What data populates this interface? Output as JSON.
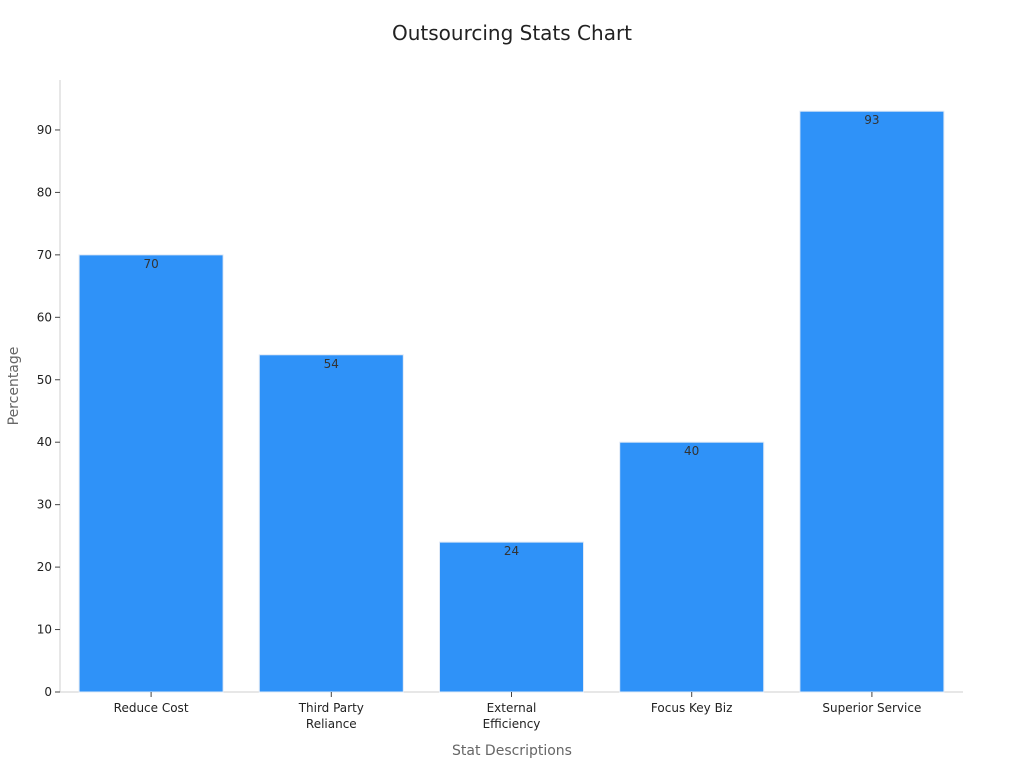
{
  "colors": {
    "bar": "#2f92f8",
    "bar_border": "#dfe9f6",
    "axis": "#cfcfcf",
    "tick_text": "#222222",
    "label_text": "#666666",
    "title_text": "#222222",
    "value_text": "#333333"
  },
  "chart_data": {
    "type": "bar",
    "title": "Outsourcing Stats Chart",
    "xlabel": "Stat Descriptions",
    "ylabel": "Percentage",
    "categories": [
      [
        "Reduce Cost"
      ],
      [
        "Third Party",
        "Reliance"
      ],
      [
        "External",
        "Efficiency"
      ],
      [
        "Focus Key Biz"
      ],
      [
        "Superior Service"
      ]
    ],
    "values": [
      70,
      54,
      24,
      40,
      93
    ],
    "ylim": [
      0,
      98
    ],
    "yticks": [
      0,
      10,
      20,
      30,
      40,
      50,
      60,
      70,
      80,
      90
    ],
    "grid": false,
    "legend": false
  }
}
